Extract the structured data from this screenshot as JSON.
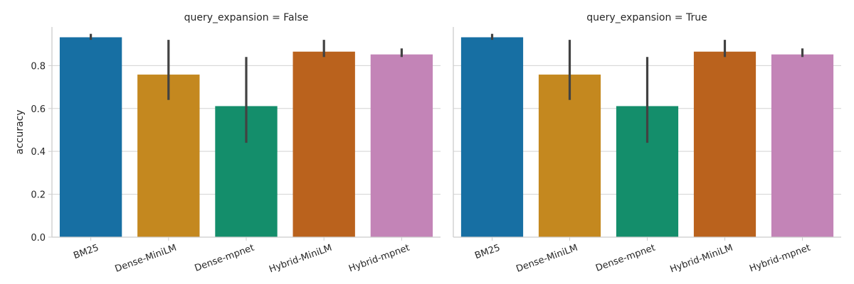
{
  "chart_data": [
    {
      "type": "bar",
      "title": "query_expansion = False",
      "xlabel": "",
      "ylabel": "accuracy",
      "ylim": [
        0,
        0.98
      ],
      "yticks": [
        0.0,
        0.2,
        0.4,
        0.6,
        0.8
      ],
      "ytick_labels": [
        "0.0",
        "0.2",
        "0.4",
        "0.6",
        "0.8"
      ],
      "grid": "horizontal",
      "categories": [
        "BM25",
        "Dense-MiniLM",
        "Dense-mpnet",
        "Hybrid-MiniLM",
        "Hybrid-mpnet"
      ],
      "values": [
        0.932,
        0.758,
        0.611,
        0.865,
        0.852
      ],
      "error_low": [
        0.92,
        0.64,
        0.44,
        0.84,
        0.84
      ],
      "error_high": [
        0.948,
        0.92,
        0.84,
        0.92,
        0.88
      ],
      "colors": [
        "#176fa3",
        "#c4881f",
        "#148e6b",
        "#ba621d",
        "#c384b7"
      ]
    },
    {
      "type": "bar",
      "title": "query_expansion = True",
      "xlabel": "",
      "ylabel": "",
      "ylim": [
        0,
        0.98
      ],
      "yticks": [
        0.0,
        0.2,
        0.4,
        0.6,
        0.8
      ],
      "grid": "horizontal",
      "categories": [
        "BM25",
        "Dense-MiniLM",
        "Dense-mpnet",
        "Hybrid-MiniLM",
        "Hybrid-mpnet"
      ],
      "values": [
        0.932,
        0.758,
        0.611,
        0.865,
        0.852
      ],
      "error_low": [
        0.92,
        0.64,
        0.44,
        0.84,
        0.84
      ],
      "error_high": [
        0.948,
        0.92,
        0.84,
        0.92,
        0.88
      ],
      "colors": [
        "#176fa3",
        "#c4881f",
        "#148e6b",
        "#ba621d",
        "#c384b7"
      ]
    }
  ]
}
